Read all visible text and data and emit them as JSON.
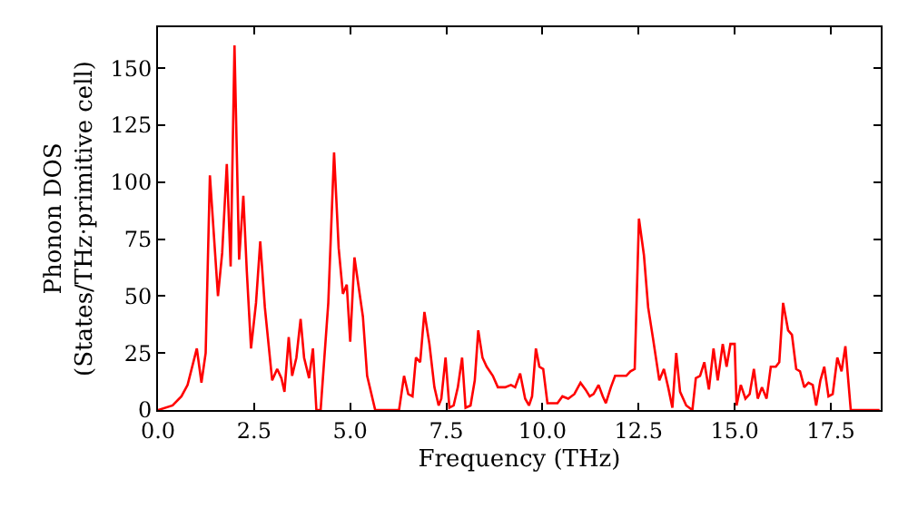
{
  "chart_data": {
    "type": "line",
    "xlabel": "Frequency (THz)",
    "ylabel": "Phonon DOS\n(States/THz·primitive cell)",
    "series": [
      {
        "color": "#ff0000",
        "x": [
          0,
          0.38,
          0.61,
          0.77,
          1.01,
          1.13,
          1.24,
          1.35,
          1.56,
          1.67,
          1.79,
          1.89,
          1.99,
          2.11,
          2.22,
          2.31,
          2.42,
          2.55,
          2.66,
          2.78,
          2.97,
          3.1,
          3.21,
          3.29,
          3.4,
          3.49,
          3.6,
          3.71,
          3.8,
          3.93,
          4.03,
          4.12,
          4.23,
          4.43,
          4.58,
          4.7,
          4.81,
          4.91,
          5.0,
          5.11,
          5.33,
          5.44,
          5.65,
          6.27,
          6.4,
          6.51,
          6.62,
          6.71,
          6.82,
          6.93,
          7.06,
          7.19,
          7.3,
          7.37,
          7.48,
          7.58,
          7.69,
          7.8,
          7.91,
          8.0,
          8.13,
          8.24,
          8.33,
          8.44,
          8.55,
          8.71,
          8.84,
          9.03,
          9.18,
          9.29,
          9.42,
          9.55,
          9.65,
          9.73,
          9.83,
          9.92,
          10.02,
          10.13,
          10.28,
          10.39,
          10.52,
          10.67,
          10.83,
          10.99,
          11.12,
          11.23,
          11.33,
          11.46,
          11.57,
          11.65,
          11.78,
          11.89,
          12.06,
          12.18,
          12.29,
          12.4,
          12.51,
          12.64,
          12.75,
          12.88,
          13.04,
          13.16,
          13.27,
          13.38,
          13.48,
          13.58,
          13.74,
          13.9,
          13.99,
          14.1,
          14.21,
          14.33,
          14.45,
          14.56,
          14.69,
          14.79,
          14.89,
          15.0,
          15.05,
          15.16,
          15.28,
          15.39,
          15.5,
          15.6,
          15.71,
          15.83,
          15.94,
          16.07,
          16.16,
          16.26,
          16.39,
          16.49,
          16.6,
          16.7,
          16.81,
          16.92,
          17.03,
          17.12,
          17.23,
          17.33,
          17.44,
          17.55,
          17.67,
          17.78,
          17.88,
          18.02,
          18.77
        ],
        "values": [
          0,
          2,
          6,
          11,
          27,
          12,
          25,
          103,
          50,
          69,
          108,
          63,
          160,
          66,
          94,
          61,
          27,
          47,
          74,
          45,
          13,
          18,
          14,
          8,
          32,
          15,
          23,
          40,
          23,
          14,
          27,
          0,
          0,
          47,
          113,
          71,
          51,
          55,
          30,
          67,
          41,
          15,
          0,
          0,
          15,
          7,
          6,
          23,
          21,
          43,
          29,
          10,
          2,
          5,
          23,
          1,
          2,
          10,
          23,
          1,
          2,
          13,
          35,
          23,
          19,
          15,
          10,
          10,
          11,
          10,
          16,
          5,
          2,
          6,
          27,
          19,
          18,
          3,
          3,
          3,
          6,
          5,
          7,
          12,
          9,
          6,
          7,
          11,
          6,
          3,
          10,
          15,
          15,
          15,
          17,
          18,
          84,
          68,
          45,
          31,
          13,
          18,
          10,
          1,
          25,
          8,
          2,
          0,
          14,
          15,
          21,
          9,
          27,
          13,
          29,
          19,
          29,
          29,
          2,
          11,
          5,
          7,
          18,
          5,
          10,
          5,
          19,
          19,
          21,
          47,
          35,
          33,
          18,
          17,
          10,
          12,
          11,
          2,
          13,
          19,
          6,
          7,
          23,
          17,
          28,
          0,
          0
        ]
      }
    ],
    "xlim": [
      0,
      18.8
    ],
    "ylim": [
      0,
      168
    ],
    "xticks": [
      {
        "value": 0,
        "label": "0.0"
      },
      2.5,
      {
        "value": 5,
        "label": "5.0"
      },
      7.5,
      {
        "value": 10,
        "label": "10.0"
      },
      12.5,
      {
        "value": 15,
        "label": "15.0"
      },
      17.5
    ],
    "yticks": [
      0,
      25,
      50,
      75,
      100,
      125,
      150
    ],
    "marker": "none",
    "line_style": "solid"
  }
}
